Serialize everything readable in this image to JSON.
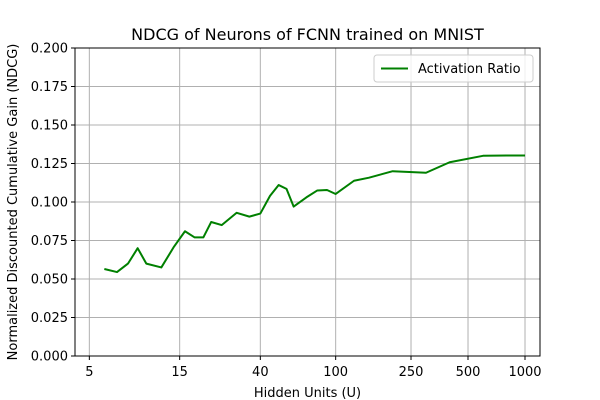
{
  "chart_data": {
    "type": "line",
    "title": "NDCG of Neurons of FCNN trained on MNIST",
    "xlabel": "Hidden Units (U)",
    "ylabel": "Normalized Discounted Cumulative Gain (NDCG)",
    "x_scale": "log",
    "xlim": [
      4.2,
      1200
    ],
    "ylim": [
      0.0,
      0.2
    ],
    "x_ticks": [
      5,
      15,
      40,
      100,
      250,
      500,
      1000
    ],
    "x_tick_labels": [
      "5",
      "15",
      "40",
      "100",
      "250",
      "500",
      "1000"
    ],
    "y_ticks": [
      0.0,
      0.025,
      0.05,
      0.075,
      0.1,
      0.125,
      0.15,
      0.175,
      0.2
    ],
    "y_tick_labels": [
      "0.000",
      "0.025",
      "0.050",
      "0.075",
      "0.100",
      "0.125",
      "0.150",
      "0.175",
      "0.200"
    ],
    "grid": true,
    "legend_position": "upper right",
    "series": [
      {
        "name": "Activation Ratio",
        "color": "#008000",
        "x": [
          6,
          7,
          8,
          9,
          10,
          12,
          14,
          16,
          18,
          20,
          22,
          25,
          30,
          35,
          40,
          45,
          50,
          55,
          60,
          70,
          80,
          90,
          100,
          125,
          150,
          200,
          300,
          400,
          600,
          800,
          1000
        ],
        "y": [
          0.0565,
          0.0545,
          0.06,
          0.07,
          0.06,
          0.0575,
          0.071,
          0.081,
          0.077,
          0.077,
          0.087,
          0.085,
          0.093,
          0.0905,
          0.0925,
          0.104,
          0.111,
          0.1085,
          0.097,
          0.103,
          0.1075,
          0.1078,
          0.1052,
          0.1138,
          0.1158,
          0.12,
          0.119,
          0.1258,
          0.13,
          0.1302,
          0.1302
        ]
      }
    ]
  }
}
